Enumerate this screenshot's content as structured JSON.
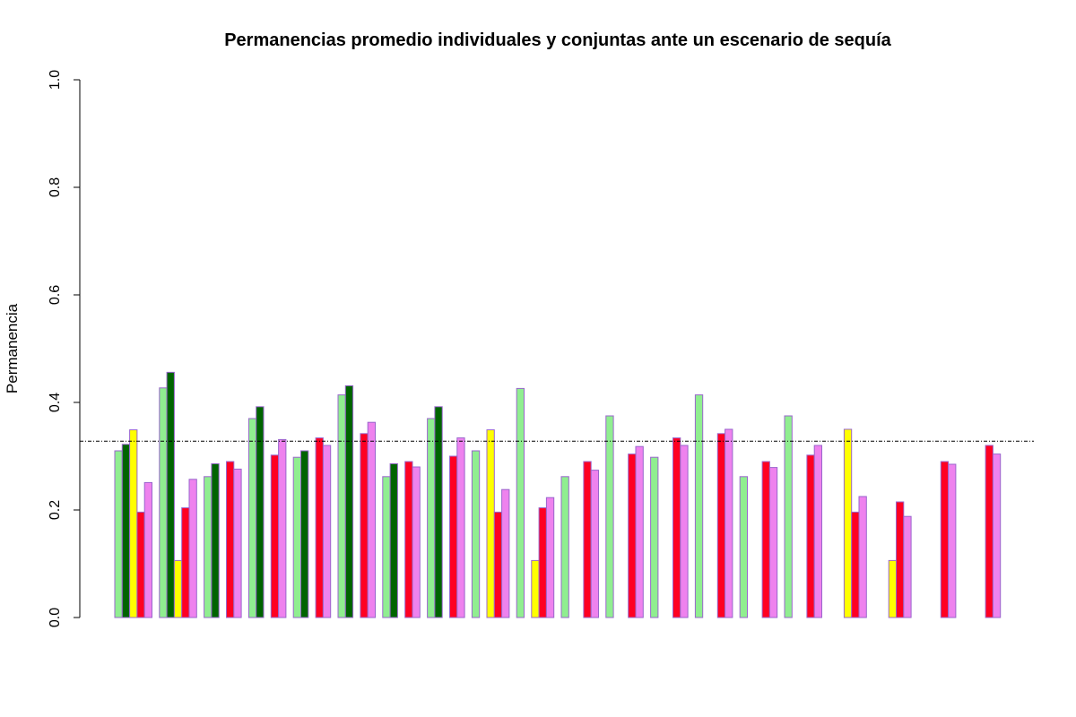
{
  "chart_data": {
    "type": "bar",
    "title": "Permanencias promedio individuales y conjuntas ante un escenario de sequía",
    "xlabel": "",
    "ylabel": "Permanencia",
    "ylim": [
      0,
      1
    ],
    "yticks": [
      "0.0",
      "0.2",
      "0.4",
      "0.6",
      "0.8",
      "1.0"
    ],
    "reference_line": 0.328,
    "grid": false,
    "legend": "none",
    "group_count": 20,
    "series": [
      {
        "color": "#90EE90",
        "values": [
          0.31,
          0.427,
          0.262,
          0.37,
          0.298,
          0.414,
          0.262,
          0.37,
          0.31,
          0.426,
          0.262,
          0.375,
          0.298,
          0.414,
          0.262,
          0.375,
          0.0,
          0.0,
          0.0,
          0.0
        ]
      },
      {
        "color": "#006400",
        "values": [
          0.322,
          0.456,
          0.286,
          0.392,
          0.31,
          0.431,
          0.286,
          0.392,
          0.0,
          0.0,
          0.0,
          0.0,
          0.0,
          0.0,
          0.0,
          0.0,
          0.0,
          0.0,
          0.0,
          0.0
        ]
      },
      {
        "color": "#FFFF00",
        "values": [
          0.349,
          0.106,
          0.0,
          0.0,
          0.0,
          0.0,
          0.0,
          0.0,
          0.349,
          0.106,
          0.0,
          0.0,
          0.0,
          0.0,
          0.0,
          0.0,
          0.35,
          0.106,
          0.0,
          0.0
        ]
      },
      {
        "color": "#FF0022",
        "values": [
          0.196,
          0.204,
          0.29,
          0.302,
          0.334,
          0.342,
          0.29,
          0.3,
          0.196,
          0.204,
          0.29,
          0.304,
          0.334,
          0.342,
          0.29,
          0.302,
          0.196,
          0.215,
          0.29,
          0.32
        ]
      },
      {
        "color": "#EE82EE",
        "values": [
          0.251,
          0.257,
          0.276,
          0.331,
          0.32,
          0.363,
          0.28,
          0.334,
          0.238,
          0.223,
          0.274,
          0.318,
          0.32,
          0.35,
          0.279,
          0.32,
          0.225,
          0.188,
          0.285,
          0.304
        ]
      }
    ],
    "border_color": "#9966CC"
  }
}
